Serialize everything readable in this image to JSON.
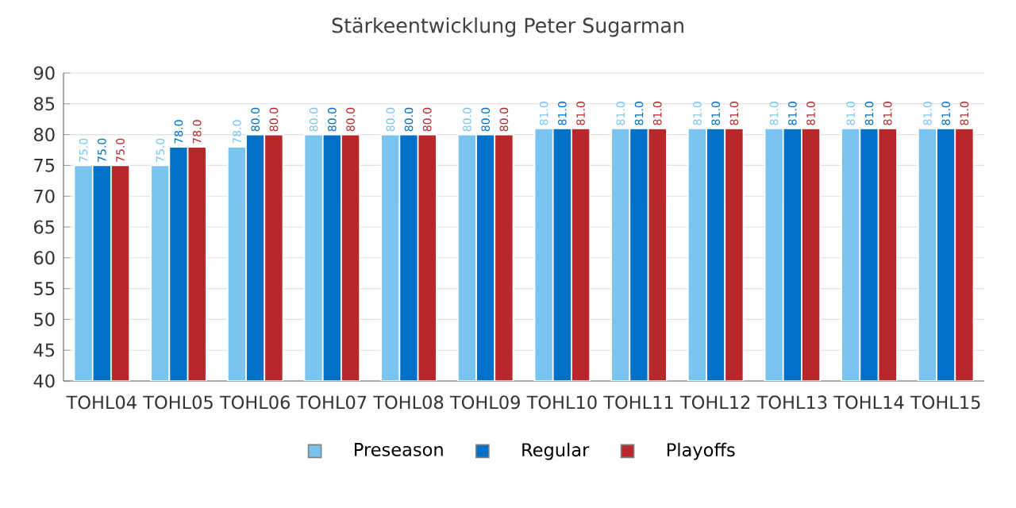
{
  "chart_data": {
    "type": "bar",
    "title": "Stärkeentwicklung Peter Sugarman",
    "categories": [
      "TOHL04",
      "TOHL05",
      "TOHL06",
      "TOHL07",
      "TOHL08",
      "TOHL09",
      "TOHL10",
      "TOHL11",
      "TOHL12",
      "TOHL13",
      "TOHL14",
      "TOHL15"
    ],
    "series": [
      {
        "name": "Preseason",
        "color": "#7ac5f0",
        "values": [
          75,
          75,
          78,
          80,
          80,
          80,
          81,
          81,
          81,
          81,
          81,
          81
        ],
        "value_labels": [
          "75.0",
          "75.0",
          "78.0",
          "80.0",
          "80.0",
          "80.0",
          "81.0",
          "81.0",
          "81.0",
          "81.0",
          "81.0",
          "81.0"
        ]
      },
      {
        "name": "Regular",
        "color": "#0070c8",
        "values": [
          75,
          78,
          80,
          80,
          80,
          80,
          81,
          81,
          81,
          81,
          81,
          81
        ],
        "value_labels": [
          "75.0",
          "78.0",
          "80.0",
          "80.0",
          "80.0",
          "80.0",
          "81.0",
          "81.0",
          "81.0",
          "81.0",
          "81.0",
          "81.0"
        ]
      },
      {
        "name": "Playoffs",
        "color": "#b8282a",
        "values": [
          75,
          78,
          80,
          80,
          80,
          80,
          81,
          81,
          81,
          81,
          81,
          81
        ],
        "value_labels": [
          "75.0",
          "78.0",
          "80.0",
          "80.0",
          "80.0",
          "80.0",
          "81.0",
          "81.0",
          "81.0",
          "81.0",
          "81.0",
          "81.0"
        ]
      }
    ],
    "ylim": [
      40,
      90
    ],
    "yticks": [
      40,
      45,
      50,
      55,
      60,
      65,
      70,
      75,
      80,
      85,
      90
    ],
    "grid": "y",
    "legend": "bottom"
  }
}
